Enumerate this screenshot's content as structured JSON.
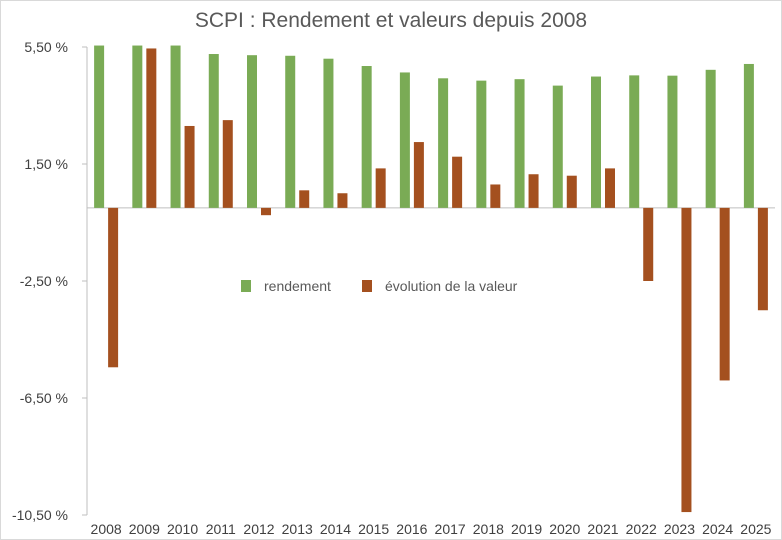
{
  "chart_data": {
    "type": "bar",
    "title": "SCPI : Rendement et valeurs depuis 2008",
    "xlabel": "",
    "ylabel": "",
    "categories": [
      "2008",
      "2009",
      "2010",
      "2011",
      "2012",
      "2013",
      "2014",
      "2015",
      "2016",
      "2017",
      "2018",
      "2019",
      "2020",
      "2021",
      "2022",
      "2023",
      "2024",
      "2025"
    ],
    "series": [
      {
        "name": "rendement",
        "color": "#7aab55",
        "values": [
          5.55,
          5.55,
          5.55,
          5.26,
          5.22,
          5.2,
          5.1,
          4.85,
          4.63,
          4.43,
          4.35,
          4.4,
          4.18,
          4.49,
          4.53,
          4.52,
          4.72,
          4.92
        ]
      },
      {
        "name": "évolution de la valeur",
        "color": "#a4501f",
        "values": [
          -5.45,
          5.45,
          2.8,
          3.0,
          -0.25,
          0.6,
          0.5,
          1.35,
          2.25,
          1.75,
          0.8,
          1.15,
          1.1,
          1.35,
          -2.5,
          -10.4,
          -5.9,
          -3.5
        ]
      }
    ],
    "ylim": [
      -10.5,
      5.5
    ],
    "yticks": [
      5.5,
      1.5,
      -2.5,
      -6.5,
      -10.5
    ],
    "ytick_labels": [
      "5,50 %",
      "1,50 %",
      "-2,50 %",
      "-6,50 %",
      "-10,50 %"
    ],
    "grid": false,
    "legend_position": "center"
  }
}
